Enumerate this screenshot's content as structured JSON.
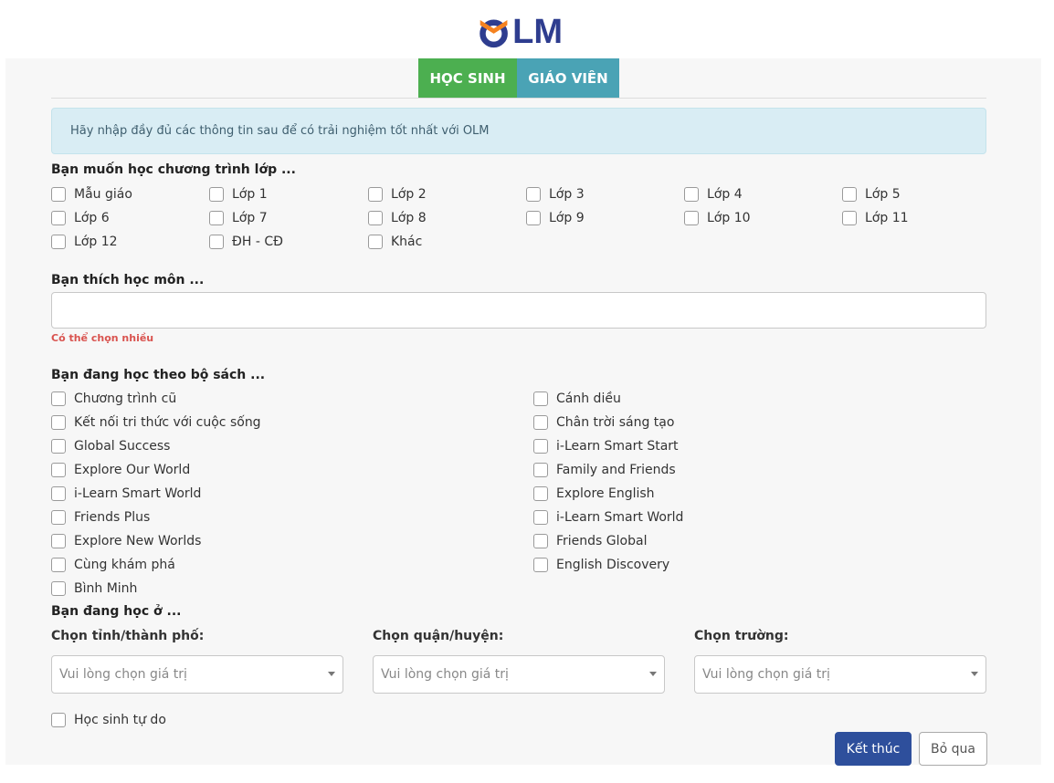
{
  "logo": {
    "text": "OLM"
  },
  "tabs": [
    {
      "label": "HỌC SINH",
      "active": true,
      "color": "#4caf50"
    },
    {
      "label": "GIÁO VIÊN",
      "active": false,
      "color": "#4aa3b5"
    }
  ],
  "alert": {
    "text": "Hãy nhập đầy đủ các thông tin sau để có trải nghiệm tốt nhất với OLM"
  },
  "grades": {
    "title": "Bạn muốn học chương trình lớp ...",
    "options": [
      "Mẫu giáo",
      "Lớp 1",
      "Lớp 2",
      "Lớp 3",
      "Lớp 4",
      "Lớp 5",
      "Lớp 6",
      "Lớp 7",
      "Lớp 8",
      "Lớp 9",
      "Lớp 10",
      "Lớp 11",
      "Lớp 12",
      "ĐH - CĐ",
      "Khác"
    ]
  },
  "subjects": {
    "title": "Bạn thích học môn ...",
    "value": "",
    "hint": "Có thể chọn nhiều"
  },
  "books": {
    "title": "Bạn đang học theo bộ sách ...",
    "left": [
      "Chương trình cũ",
      "Kết nối tri thức với cuộc sống",
      "Global Success",
      "Explore Our World",
      "i-Learn Smart World",
      "Friends Plus",
      "Explore New Worlds",
      "Cùng khám phá",
      "Bình Minh"
    ],
    "right": [
      "Cánh diều",
      "Chân trời sáng tạo",
      "i-Learn Smart Start",
      "Family and Friends",
      "Explore English",
      "i-Learn Smart World",
      "Friends Global",
      "English Discovery"
    ]
  },
  "location": {
    "title": "Bạn đang học ở ...",
    "province": {
      "label": "Chọn tỉnh/thành phố:",
      "placeholder": "Vui lòng chọn giá trị"
    },
    "district": {
      "label": "Chọn quận/huyện:",
      "placeholder": "Vui lòng chọn giá trị"
    },
    "school": {
      "label": "Chọn trường:",
      "placeholder": "Vui lòng chọn giá trị"
    }
  },
  "free_student": {
    "label": "Học sinh tự do"
  },
  "buttons": {
    "finish": "Kết thúc",
    "skip": "Bỏ qua"
  },
  "colors": {
    "brand": "#2e3d8f",
    "accent_orange": "#f58220",
    "finish_button": "#2e4f9c",
    "hint": "#d9534f"
  }
}
